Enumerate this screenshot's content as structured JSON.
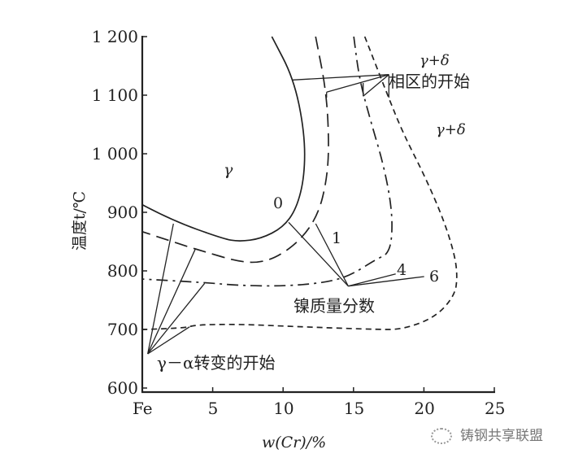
{
  "chart_data": {
    "type": "line",
    "xlabel": "w(Cr)/%",
    "ylabel": "温度t/℃",
    "xlim": [
      0,
      25
    ],
    "ylim": [
      600,
      1200
    ],
    "xticks": [
      "Fe",
      "5",
      "10",
      "15",
      "20",
      "25"
    ],
    "yticks": [
      "600",
      "700",
      "800",
      "900",
      "1 000",
      "1 100",
      "1 200"
    ],
    "grid": false,
    "series": [
      {
        "name": "0",
        "style": "solid",
        "points": [
          [
            9.2,
            1200
          ],
          [
            10.76,
            1128
          ],
          [
            11.53,
            1036
          ],
          [
            11.53,
            962
          ],
          [
            10.95,
            906
          ],
          [
            9.98,
            874
          ],
          [
            8.43,
            855
          ],
          [
            6.88,
            850
          ],
          [
            5.72,
            855
          ],
          [
            2.03,
            887
          ],
          [
            0,
            913
          ]
        ]
      },
      {
        "name": "1",
        "style": "long-dash",
        "points": [
          [
            12.31,
            1200
          ],
          [
            13.08,
            1105
          ],
          [
            13.27,
            1012
          ],
          [
            13.08,
            952
          ],
          [
            12.5,
            897
          ],
          [
            11.34,
            855
          ],
          [
            9.59,
            823
          ],
          [
            8.04,
            813
          ],
          [
            6.49,
            818
          ],
          [
            4.55,
            832
          ],
          [
            3.0,
            843
          ],
          [
            0,
            867
          ]
        ]
      },
      {
        "name": "4",
        "style": "dash-dot",
        "points": [
          [
            15.02,
            1200
          ],
          [
            15.41,
            1128
          ],
          [
            16.18,
            1059
          ],
          [
            17.15,
            980
          ],
          [
            17.73,
            906
          ],
          [
            17.73,
            850
          ],
          [
            17.34,
            827
          ],
          [
            16.76,
            822
          ],
          [
            14.63,
            790
          ],
          [
            12.69,
            779
          ],
          [
            9.98,
            774
          ],
          [
            6.88,
            775
          ],
          [
            3.97,
            781
          ],
          [
            0,
            786
          ]
        ]
      },
      {
        "name": "6",
        "style": "short-dash",
        "points": [
          [
            15.8,
            1200
          ],
          [
            17.34,
            1105
          ],
          [
            18.5,
            1036
          ],
          [
            20.06,
            962
          ],
          [
            21.41,
            887
          ],
          [
            22.19,
            827
          ],
          [
            22.38,
            790
          ],
          [
            22.19,
            758
          ],
          [
            20.83,
            721
          ],
          [
            18.5,
            700
          ],
          [
            16.57,
            700
          ],
          [
            10.76,
            705
          ],
          [
            6.88,
            709
          ],
          [
            3.78,
            708
          ],
          [
            3.0,
            702
          ],
          [
            0,
            700
          ]
        ]
      }
    ],
    "annotations": {
      "gamma": "γ",
      "gamma_delta_top": "γ+δ",
      "phase_start": "相区的开始",
      "gamma_delta_right": "γ+δ",
      "ni_fraction": "镍质量分数",
      "gamma_alpha_start": "γ－α转变的开始"
    }
  },
  "watermark": "铸钢共享联盟"
}
